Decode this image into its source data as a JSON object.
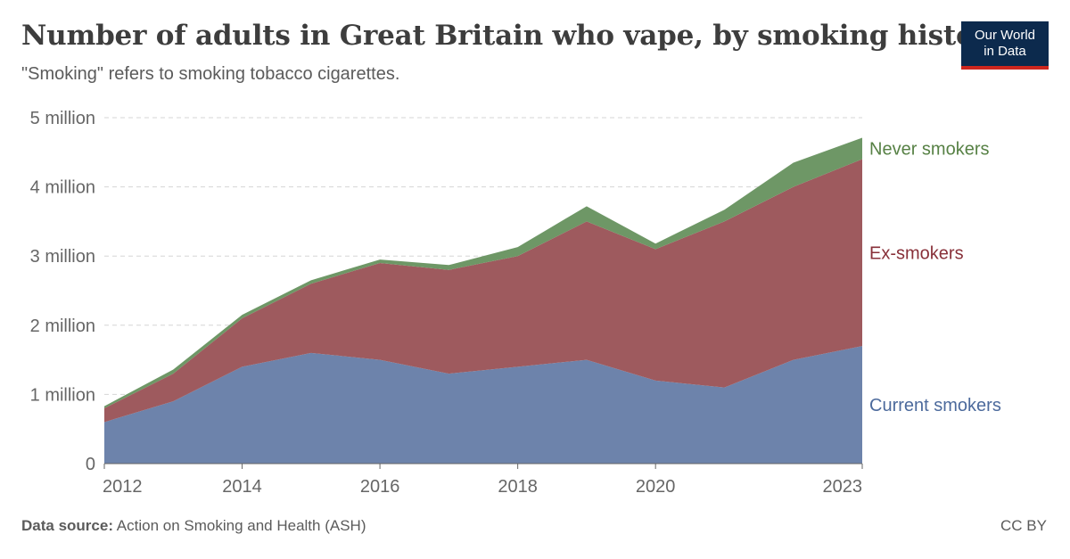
{
  "header": {
    "title": "Number of adults in Great Britain who vape, by smoking history",
    "subtitle": "\"Smoking\" refers to smoking tobacco cigarettes."
  },
  "logo": {
    "line1": "Our World",
    "line2": "in Data",
    "bg": "#0c2a4d",
    "accent": "#ce261e"
  },
  "footer": {
    "source_label": "Data source:",
    "source_text": "Action on Smoking and Health (ASH)",
    "license": "CC BY"
  },
  "chart_data": {
    "type": "area",
    "stacked": true,
    "title": "Number of adults in Great Britain who vape, by smoking history",
    "x": [
      2012,
      2013,
      2014,
      2015,
      2016,
      2017,
      2018,
      2019,
      2020,
      2021,
      2022,
      2023
    ],
    "x_ticks": [
      "2012",
      "2014",
      "2016",
      "2018",
      "2020",
      "2023"
    ],
    "x_tick_values": [
      2012,
      2014,
      2016,
      2018,
      2020,
      2023
    ],
    "y_ticks": [
      "0",
      "1 million",
      "2 million",
      "3 million",
      "4 million",
      "5 million"
    ],
    "y_tick_values": [
      0,
      1000000,
      2000000,
      3000000,
      4000000,
      5000000
    ],
    "ylim": [
      0,
      5000000
    ],
    "grid": "horizontal-dashed",
    "legend": "right-inline",
    "series": [
      {
        "name": "Current smokers",
        "color": "#6d83ab",
        "values": [
          600000,
          900000,
          1400000,
          1600000,
          1500000,
          1300000,
          1400000,
          1500000,
          1200000,
          1100000,
          1500000,
          1700000
        ]
      },
      {
        "name": "Ex-smokers",
        "color": "#9e5a5e",
        "values": [
          200000,
          400000,
          700000,
          1000000,
          1400000,
          1500000,
          1600000,
          2000000,
          1900000,
          2400000,
          2500000,
          2700000
        ]
      },
      {
        "name": "Never smokers",
        "color": "#6e9766",
        "values": [
          30000,
          60000,
          50000,
          50000,
          50000,
          70000,
          130000,
          220000,
          80000,
          170000,
          350000,
          310000
        ]
      }
    ],
    "label_colors": [
      "#4c6a9c",
      "#883039",
      "#578145"
    ]
  }
}
